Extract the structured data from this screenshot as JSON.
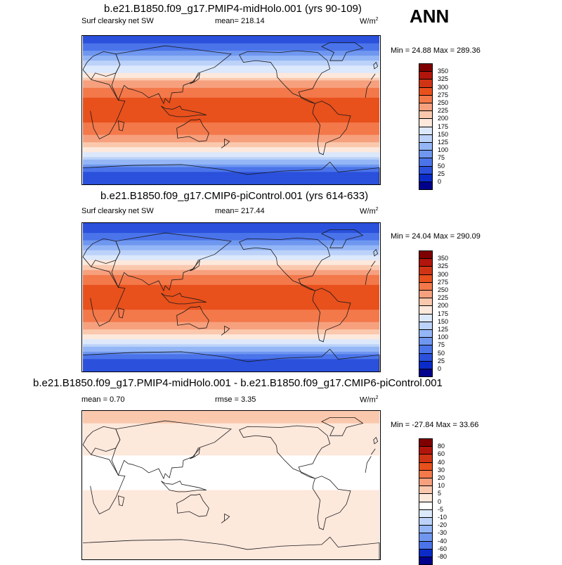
{
  "season": "ANN",
  "units_base": "W/m",
  "units_exp": "2",
  "panels": [
    {
      "title": "b.e21.B1850.f09_g17.PMIP4-midHolo.001 (yrs 90-109)",
      "variable": "Surf clearsky net SW",
      "stat": "mean= 218.14",
      "minmax": "Min =  24.88 Max = 289.36",
      "palette": "abs"
    },
    {
      "title": "b.e21.B1850.f09_g17.CMIP6-piControl.001 (yrs 614-633)",
      "variable": "Surf clearsky net SW",
      "stat": "mean= 217.44",
      "minmax": "Min =  24.04 Max = 290.09",
      "palette": "abs"
    },
    {
      "title": "b.e21.B1850.f09_g17.PMIP4-midHolo.001 - b.e21.B1850.f09_g17.CMIP6-piControl.001",
      "mean": "mean =   0.70",
      "rmse": "rmse =   3.35",
      "minmax": "Min = -27.84 Max =  33.66",
      "palette": "diff"
    }
  ],
  "chart_data": [
    {
      "type": "heatmap",
      "title": "b.e21.B1850.f09_g17.PMIP4-midHolo.001 (yrs 90-109)",
      "variable": "Surf clearsky net SW",
      "units": "W/m2",
      "mean": 218.14,
      "min": 24.88,
      "max": 289.36,
      "colorbar_levels": [
        "350",
        "325",
        "300",
        "275",
        "250",
        "225",
        "200",
        "175",
        "150",
        "125",
        "100",
        "75",
        "50",
        "25",
        "0"
      ],
      "colorbar_colors": [
        "#7f0000",
        "#b2150b",
        "#cf3414",
        "#e8501c",
        "#f3784a",
        "#f6a07e",
        "#fac8ad",
        "#fde8dc",
        "#dce8fb",
        "#bcd2f9",
        "#94b6f6",
        "#6f97f0",
        "#4b74ea",
        "#2a50dc",
        "#0a2bc8",
        "#00008c"
      ],
      "zonal_profile": {
        "lat": [
          90,
          75,
          60,
          45,
          30,
          15,
          0,
          -15,
          -30,
          -45,
          -60,
          -75,
          -90
        ],
        "value": [
          30,
          60,
          120,
          180,
          245,
          275,
          280,
          275,
          250,
          200,
          130,
          45,
          25
        ]
      }
    },
    {
      "type": "heatmap",
      "title": "b.e21.B1850.f09_g17.CMIP6-piControl.001 (yrs 614-633)",
      "variable": "Surf clearsky net SW",
      "units": "W/m2",
      "mean": 217.44,
      "min": 24.04,
      "max": 290.09,
      "colorbar_levels": [
        "350",
        "325",
        "300",
        "275",
        "250",
        "225",
        "200",
        "175",
        "150",
        "125",
        "100",
        "75",
        "50",
        "25",
        "0"
      ],
      "colorbar_colors": [
        "#7f0000",
        "#b2150b",
        "#cf3414",
        "#e8501c",
        "#f3784a",
        "#f6a07e",
        "#fac8ad",
        "#fde8dc",
        "#dce8fb",
        "#bcd2f9",
        "#94b6f6",
        "#6f97f0",
        "#4b74ea",
        "#2a50dc",
        "#0a2bc8",
        "#00008c"
      ],
      "zonal_profile": {
        "lat": [
          90,
          75,
          60,
          45,
          30,
          15,
          0,
          -15,
          -30,
          -45,
          -60,
          -75,
          -90
        ],
        "value": [
          28,
          55,
          115,
          175,
          245,
          275,
          280,
          276,
          252,
          202,
          132,
          46,
          24
        ]
      }
    },
    {
      "type": "heatmap",
      "title": "b.e21.B1850.f09_g17.PMIP4-midHolo.001 - b.e21.B1850.f09_g17.CMIP6-piControl.001",
      "units": "W/m2",
      "mean": 0.7,
      "rmse": 3.35,
      "min": -27.84,
      "max": 33.66,
      "colorbar_levels": [
        "80",
        "60",
        "40",
        "30",
        "20",
        "10",
        "5",
        "0",
        "-5",
        "-10",
        "-20",
        "-30",
        "-40",
        "-60",
        "-80"
      ],
      "colorbar_colors": [
        "#7f0000",
        "#b2150b",
        "#cf3414",
        "#e8501c",
        "#f3784a",
        "#f6a07e",
        "#fac8ad",
        "#fde8dc",
        "#ffffff",
        "#dce8fb",
        "#bcd2f9",
        "#94b6f6",
        "#6f97f0",
        "#4b74ea",
        "#0a2bc8",
        "#00008c"
      ],
      "zonal_profile": {
        "lat": [
          90,
          75,
          60,
          45,
          30,
          15,
          0,
          -15,
          -30,
          -45,
          -60,
          -75,
          -90
        ],
        "value": [
          6,
          5,
          2,
          1,
          -1,
          -2,
          -1,
          1,
          2,
          3,
          2,
          1,
          0
        ]
      }
    }
  ]
}
